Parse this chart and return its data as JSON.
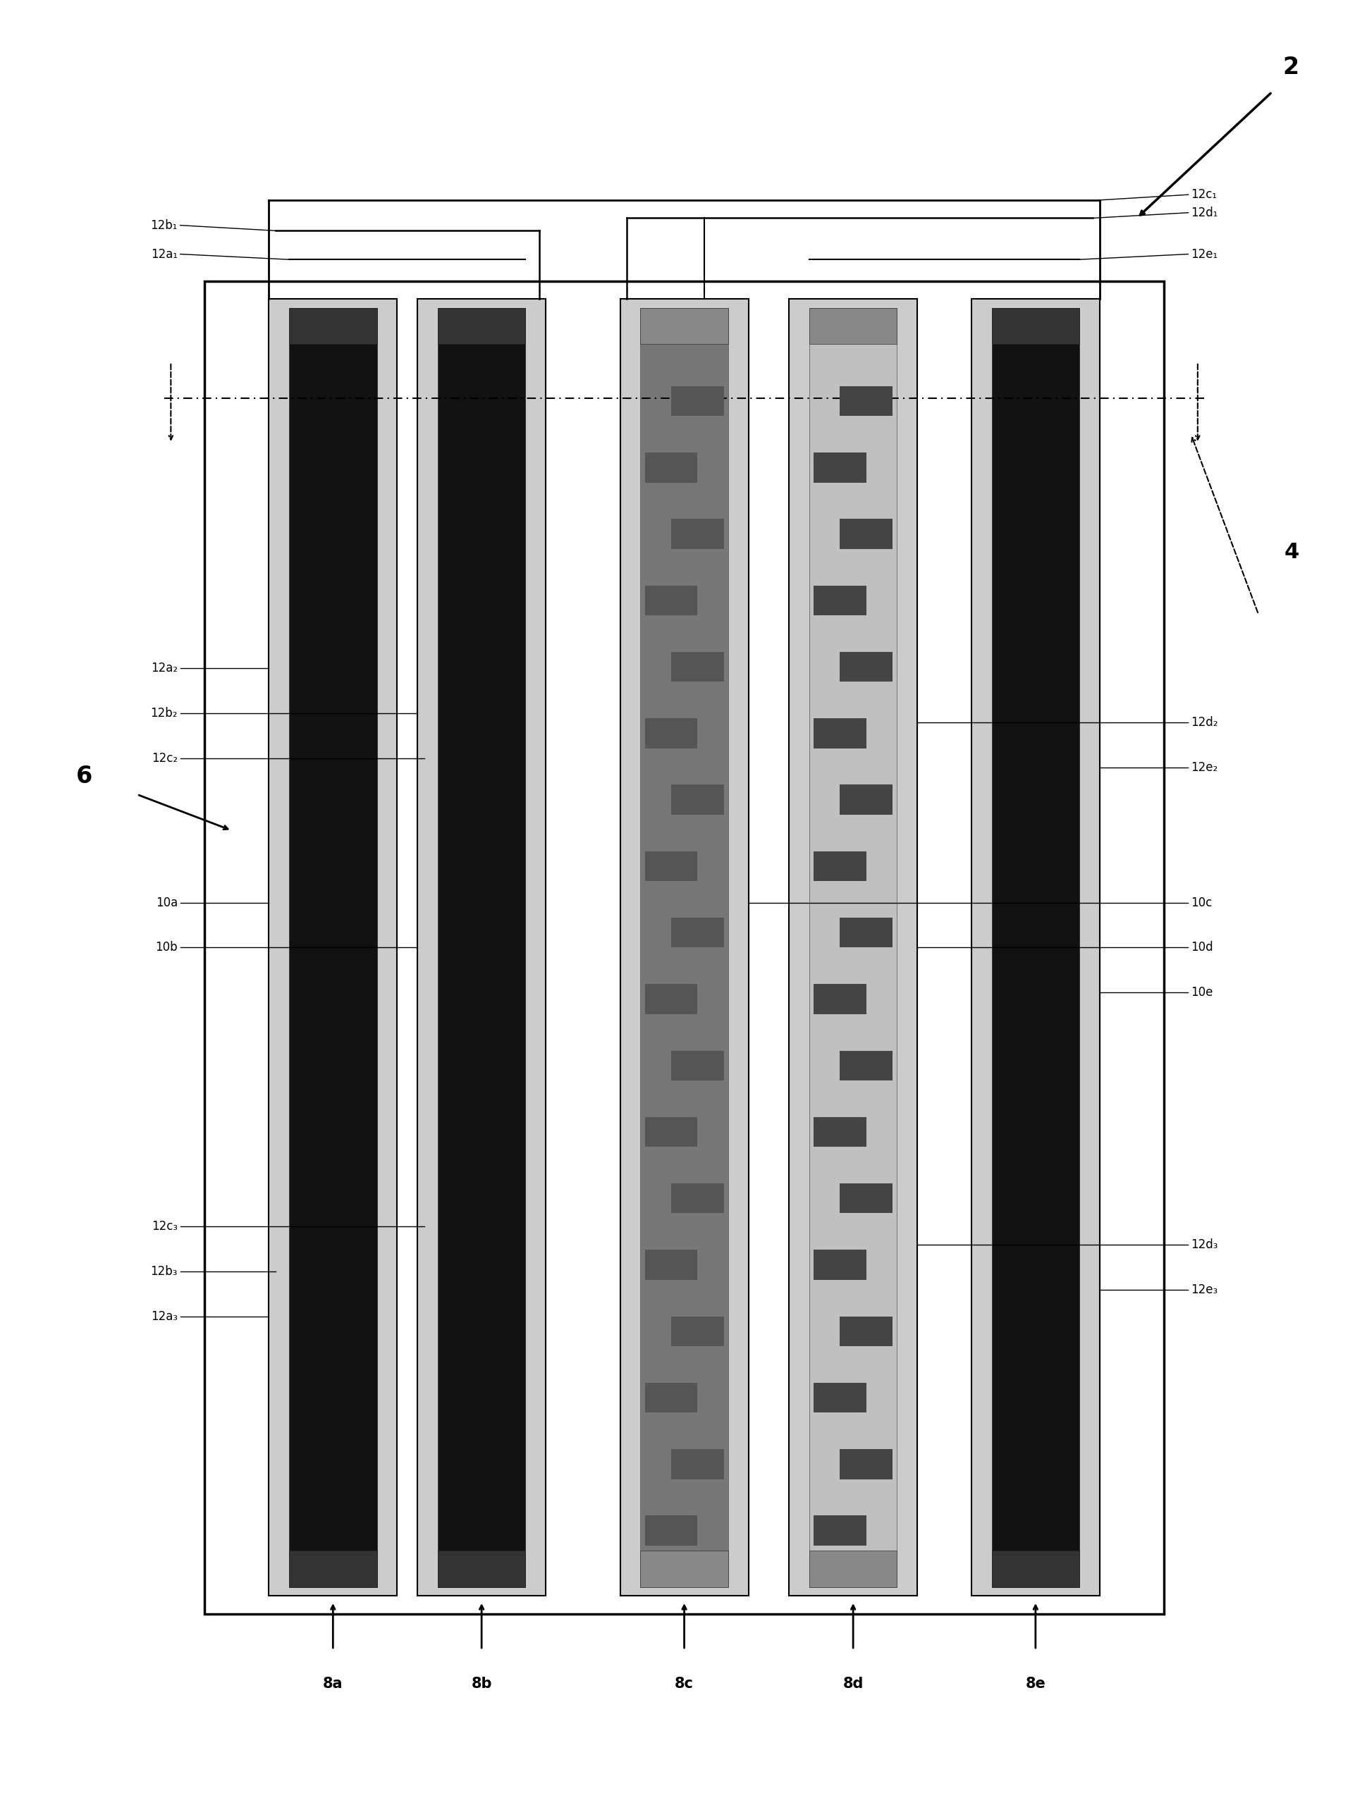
{
  "fig_width": 19.22,
  "fig_height": 25.61,
  "bg_color": "#ffffff",
  "label_2": "2",
  "label_4": "4",
  "label_6": "6",
  "bottom_labels": [
    "8a",
    "8b",
    "8c",
    "8d",
    "8e"
  ],
  "left_top_labels": [
    "12b₁",
    "12a₁"
  ],
  "left_mid_labels": [
    "12a₂",
    "12b₂",
    "12c₂"
  ],
  "left_bot_labels": [
    "12c₃",
    "12b₃",
    "12a₃"
  ],
  "right_top_labels": [
    "12c₁",
    "12d₁",
    "12e₁"
  ],
  "right_mid_labels": [
    "12d₂",
    "12e₂"
  ],
  "right_bot_labels": [
    "12d₃",
    "12e₃"
  ],
  "left_device_labels": [
    "10a",
    "10b"
  ],
  "right_device_labels": [
    "10c",
    "10d",
    "10e"
  ],
  "col_dark_color": "#1a1a1a",
  "col_dark_outer": "#555555",
  "col_c_body": "#777777",
  "col_d_body": "#bbbbbb",
  "electrode_dark": "#333333",
  "electrode_light": "#888888",
  "idt_dark_finger": "#444444",
  "idt_light_finger": "#666666"
}
